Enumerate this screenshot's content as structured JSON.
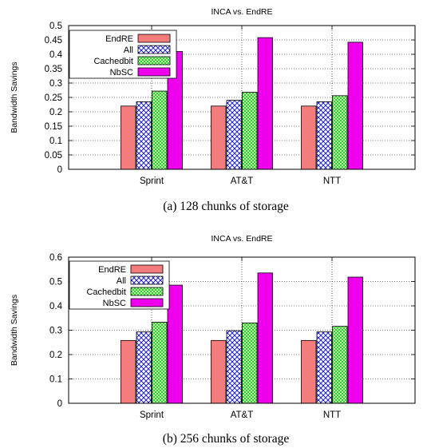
{
  "chart_data": [
    {
      "type": "bar",
      "title": "INCA vs. EndRE",
      "ylabel": "Bandwidth Savings",
      "xlabel": "",
      "caption": "(a) 128 chunks of storage",
      "categories": [
        "Sprint",
        "AT&T",
        "NTT"
      ],
      "ylim": [
        0,
        0.5
      ],
      "yticks": [
        "0",
        "0.05",
        "0.1",
        "0.15",
        "0.2",
        "0.25",
        "0.3",
        "0.35",
        "0.4",
        "0.45",
        "0.5"
      ],
      "grid": true,
      "legend_position": "top-left",
      "series": [
        {
          "name": "EndRE",
          "values": [
            0.22,
            0.22,
            0.22
          ],
          "color": "#f47c7c",
          "pattern": "solid"
        },
        {
          "name": "All",
          "values": [
            0.235,
            0.24,
            0.235
          ],
          "color": "#2222dd",
          "pattern": "crosshatch"
        },
        {
          "name": "Cachedbit",
          "values": [
            0.272,
            0.268,
            0.256
          ],
          "color": "#33cc33",
          "pattern": "checker"
        },
        {
          "name": "NbSC",
          "values": [
            0.41,
            0.458,
            0.442
          ],
          "color": "#ee00ee",
          "pattern": "solid"
        }
      ]
    },
    {
      "type": "bar",
      "title": "INCA vs. EndRE",
      "ylabel": "Bandwidth Savings",
      "xlabel": "",
      "caption": "(b) 256 chunks of storage",
      "categories": [
        "Sprint",
        "AT&T",
        "NTT"
      ],
      "ylim": [
        0,
        0.6
      ],
      "yticks": [
        "0",
        "0.1",
        "0.2",
        "0.3",
        "0.4",
        "0.5",
        "0.6"
      ],
      "grid": true,
      "legend_position": "top-left",
      "series": [
        {
          "name": "EndRE",
          "values": [
            0.258,
            0.258,
            0.258
          ],
          "color": "#f47c7c",
          "pattern": "solid"
        },
        {
          "name": "All",
          "values": [
            0.293,
            0.298,
            0.293
          ],
          "color": "#2222dd",
          "pattern": "crosshatch"
        },
        {
          "name": "Cachedbit",
          "values": [
            0.333,
            0.33,
            0.316
          ],
          "color": "#33cc33",
          "pattern": "checker"
        },
        {
          "name": "NbSC",
          "values": [
            0.485,
            0.535,
            0.518
          ],
          "color": "#ee00ee",
          "pattern": "solid"
        }
      ]
    }
  ]
}
